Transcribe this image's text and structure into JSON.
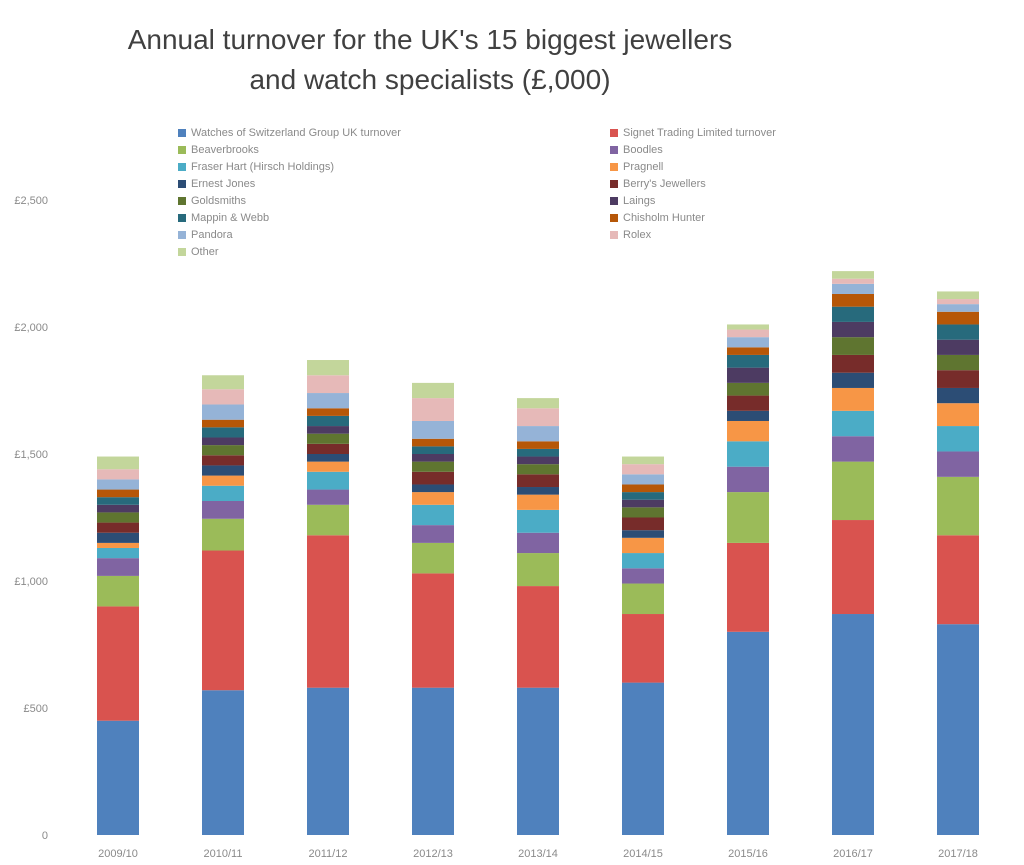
{
  "chart_data": {
    "type": "bar",
    "stacked": true,
    "title": "Annual turnover for the UK's 15 biggest jewellers\nand watch specialists (£,000)",
    "xlabel": "",
    "ylabel": "",
    "categories": [
      "2009/10",
      "2010/11",
      "2011/12",
      "2012/13",
      "2013/14",
      "2014/15",
      "2015/16",
      "2016/17",
      "2017/18"
    ],
    "y_ticks": [
      "0",
      "£500",
      "£1,000",
      "£1,500",
      "£2,000",
      "£2,500"
    ],
    "ylim": [
      0,
      2500
    ],
    "grid": false,
    "legend": "top",
    "series": [
      {
        "name": "Watches of Switzerland Group UK turnover",
        "color": "#4f81bd",
        "values": [
          450,
          570,
          580,
          580,
          580,
          600,
          800,
          870,
          830
        ]
      },
      {
        "name": "Signet Trading Limited turnover",
        "color": "#d9534f",
        "values": [
          450,
          550,
          600,
          450,
          400,
          270,
          350,
          370,
          350
        ]
      },
      {
        "name": "Beaverbrooks",
        "color": "#9bbb59",
        "values": [
          120,
          125,
          120,
          120,
          130,
          120,
          200,
          230,
          230
        ]
      },
      {
        "name": "Boodles",
        "color": "#8064a2",
        "values": [
          70,
          70,
          60,
          70,
          80,
          60,
          100,
          100,
          100
        ]
      },
      {
        "name": "Fraser Hart (Hirsch Holdings)",
        "color": "#4bacc6",
        "values": [
          40,
          60,
          70,
          80,
          90,
          60,
          100,
          100,
          100
        ]
      },
      {
        "name": "Pragnell",
        "color": "#f79646",
        "values": [
          20,
          40,
          40,
          50,
          60,
          60,
          80,
          90,
          90
        ]
      },
      {
        "name": "Ernest Jones",
        "color": "#2c4d75",
        "values": [
          40,
          40,
          30,
          30,
          30,
          30,
          40,
          60,
          60
        ]
      },
      {
        "name": "Berry's Jewellers",
        "color": "#772c2a",
        "values": [
          40,
          40,
          40,
          50,
          50,
          50,
          60,
          70,
          70
        ]
      },
      {
        "name": "Goldsmiths",
        "color": "#5f7530",
        "values": [
          40,
          40,
          40,
          40,
          40,
          40,
          50,
          70,
          60
        ]
      },
      {
        "name": "Laings",
        "color": "#4d3b62",
        "values": [
          30,
          30,
          30,
          30,
          30,
          30,
          60,
          60,
          60
        ]
      },
      {
        "name": "Mappin & Webb",
        "color": "#276a7c",
        "values": [
          30,
          40,
          40,
          30,
          30,
          30,
          50,
          60,
          60
        ]
      },
      {
        "name": "Chisholm Hunter",
        "color": "#b65708",
        "values": [
          30,
          30,
          30,
          30,
          30,
          30,
          30,
          50,
          50
        ]
      },
      {
        "name": "Pandora",
        "color": "#95b3d7",
        "values": [
          40,
          60,
          60,
          70,
          60,
          40,
          40,
          40,
          30
        ]
      },
      {
        "name": "Rolex",
        "color": "#e6b9b8",
        "values": [
          40,
          60,
          70,
          90,
          70,
          40,
          30,
          20,
          20
        ]
      },
      {
        "name": "Other",
        "color": "#c3d69b",
        "values": [
          50,
          55,
          60,
          60,
          40,
          30,
          20,
          30,
          30
        ]
      }
    ]
  }
}
